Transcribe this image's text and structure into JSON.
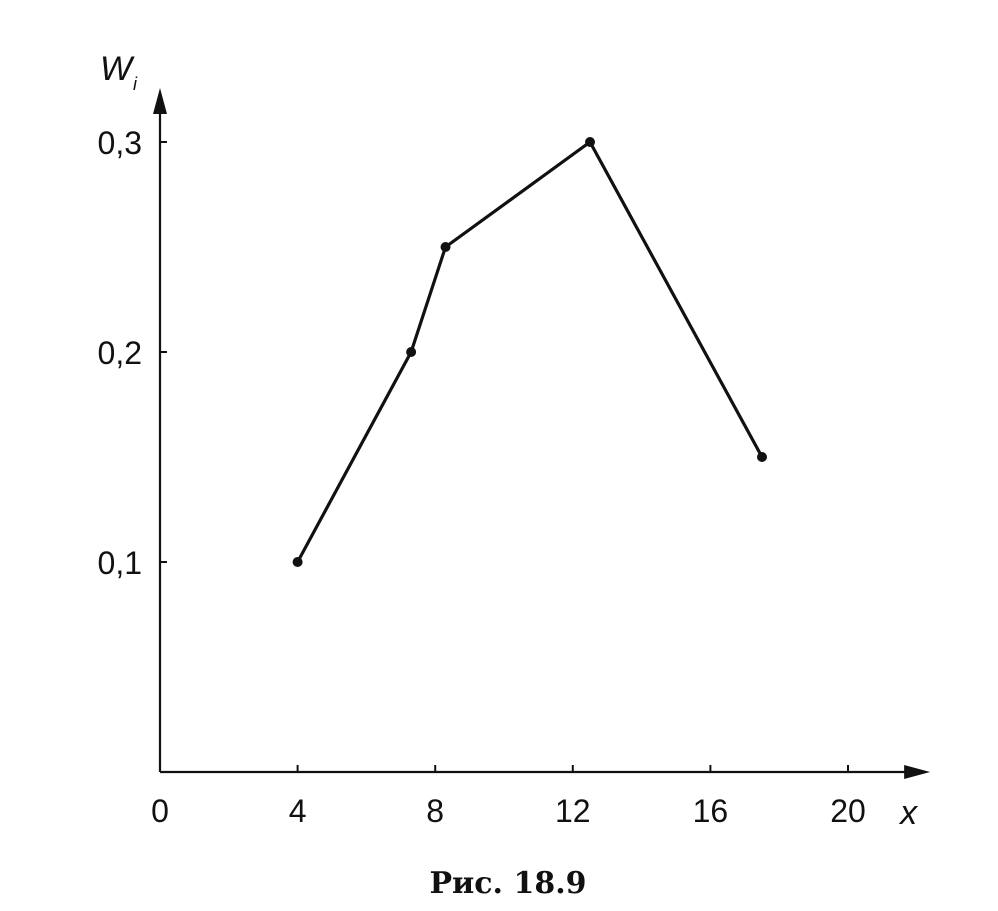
{
  "chart_data": {
    "type": "line",
    "caption": "Рис. 18.9",
    "xlabel": "x",
    "ylabel": "W",
    "ylabel_sub": "i",
    "origin_label": "0",
    "x_ticks": [
      "4",
      "8",
      "12",
      "16",
      "20"
    ],
    "y_ticks": [
      "0,1",
      "0,2",
      "0,3"
    ],
    "xlim": [
      0,
      22.3
    ],
    "ylim": [
      0,
      0.32
    ],
    "series": [
      {
        "points": [
          {
            "x": 4,
            "y": 0.1
          },
          {
            "x": 7.3,
            "y": 0.2
          },
          {
            "x": 8.3,
            "y": 0.25
          },
          {
            "x": 12.5,
            "y": 0.3
          },
          {
            "x": 17.5,
            "y": 0.15
          }
        ]
      }
    ],
    "grid": false,
    "colors": {
      "line": "#111111",
      "axis": "#111111"
    }
  }
}
